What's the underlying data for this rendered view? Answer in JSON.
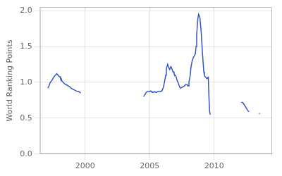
{
  "chart_data": {
    "type": "line",
    "ylabel": "World Ranking Points",
    "xlim": [
      1996.5,
      2014.5
    ],
    "xticks": [
      2000,
      2005,
      2010
    ],
    "ylim": [
      0,
      2.05
    ],
    "yticks": [
      {
        "value": 0,
        "label": "0.0"
      },
      0.5,
      {
        "value": 1.0,
        "label": "1.0"
      },
      1.5,
      {
        "value": 2.0,
        "label": "2.0"
      }
    ],
    "grid": true,
    "series": [
      {
        "color": "#3355cc",
        "x": [
          1997.1,
          1997.2,
          1997.3,
          1997.4,
          1997.5,
          1997.6,
          1997.7,
          1997.8,
          1997.9,
          1998.0,
          1998.05,
          1998.1,
          1998.15,
          1998.2,
          1998.3,
          1998.4,
          1998.5,
          1998.6,
          1998.7,
          1998.8,
          1998.85,
          1998.9,
          1999.0,
          1999.1,
          1999.2,
          1999.3,
          1999.5,
          1999.6,
          1999.65
        ],
        "values": [
          0.92,
          0.95,
          1.0,
          1.02,
          1.05,
          1.08,
          1.1,
          1.12,
          1.1,
          1.08,
          1.08,
          1.05,
          1.05,
          1.02,
          1.0,
          0.98,
          0.97,
          0.96,
          0.95,
          0.94,
          0.93,
          0.92,
          0.91,
          0.9,
          0.89,
          0.88,
          0.87,
          0.86,
          0.85
        ]
      },
      {
        "color": "#3355cc",
        "x": [
          2004.55,
          2004.6,
          2004.7,
          2004.8,
          2004.9,
          2005.0,
          2005.05,
          2005.1,
          2005.15,
          2005.2,
          2005.25,
          2005.3,
          2005.35,
          2005.4,
          2005.45,
          2005.5,
          2005.55,
          2005.6,
          2005.65,
          2005.7,
          2005.75,
          2005.8,
          2005.85,
          2005.9,
          2005.95,
          2006.0,
          2006.05,
          2006.1,
          2006.15,
          2006.2,
          2006.25,
          2006.3,
          2006.35,
          2006.4,
          2006.45,
          2006.5,
          2006.55,
          2006.6,
          2006.65,
          2006.7,
          2006.75,
          2006.8,
          2006.85,
          2006.9,
          2006.95,
          2007.0,
          2007.05,
          2007.1,
          2007.15,
          2007.2,
          2007.25,
          2007.3,
          2007.35,
          2007.4,
          2007.5,
          2007.6,
          2007.7,
          2007.8,
          2007.85,
          2007.9,
          2007.95,
          2008.0,
          2008.05,
          2008.1,
          2008.15,
          2008.2,
          2008.3,
          2008.4,
          2008.5,
          2008.55,
          2008.6,
          2008.65,
          2008.7,
          2008.75,
          2008.8,
          2008.85,
          2008.9,
          2009.0,
          2009.1,
          2009.2,
          2009.25,
          2009.3,
          2009.35,
          2009.4,
          2009.45,
          2009.5,
          2009.55,
          2009.6,
          2009.65,
          2009.7
        ],
        "values": [
          0.8,
          0.82,
          0.85,
          0.87,
          0.87,
          0.87,
          0.88,
          0.88,
          0.87,
          0.87,
          0.86,
          0.86,
          0.87,
          0.87,
          0.86,
          0.86,
          0.86,
          0.87,
          0.87,
          0.87,
          0.87,
          0.87,
          0.87,
          0.88,
          0.88,
          0.9,
          0.92,
          0.96,
          1.0,
          1.05,
          1.1,
          1.2,
          1.22,
          1.25,
          1.22,
          1.2,
          1.18,
          1.2,
          1.22,
          1.2,
          1.18,
          1.15,
          1.15,
          1.12,
          1.1,
          1.1,
          1.08,
          1.05,
          1.02,
          1.0,
          0.98,
          0.95,
          0.93,
          0.92,
          0.93,
          0.94,
          0.95,
          0.97,
          0.97,
          0.97,
          0.95,
          0.95,
          1.0,
          1.05,
          1.1,
          1.2,
          1.3,
          1.35,
          1.38,
          1.4,
          1.5,
          1.65,
          1.8,
          1.9,
          1.95,
          1.93,
          1.9,
          1.7,
          1.4,
          1.15,
          1.1,
          1.08,
          1.07,
          1.06,
          1.05,
          1.06,
          1.07,
          0.8,
          0.6,
          0.55
        ]
      },
      {
        "color": "#3355cc",
        "x": [
          2012.1,
          2012.2,
          2012.3,
          2012.4,
          2012.5,
          2012.6,
          2012.65,
          2012.7
        ],
        "values": [
          0.72,
          0.72,
          0.7,
          0.67,
          0.64,
          0.61,
          0.6,
          0.59
        ]
      },
      {
        "color": "#3355cc",
        "x": [
          2013.5,
          2013.55
        ],
        "values": [
          0.57,
          0.56
        ]
      }
    ]
  }
}
